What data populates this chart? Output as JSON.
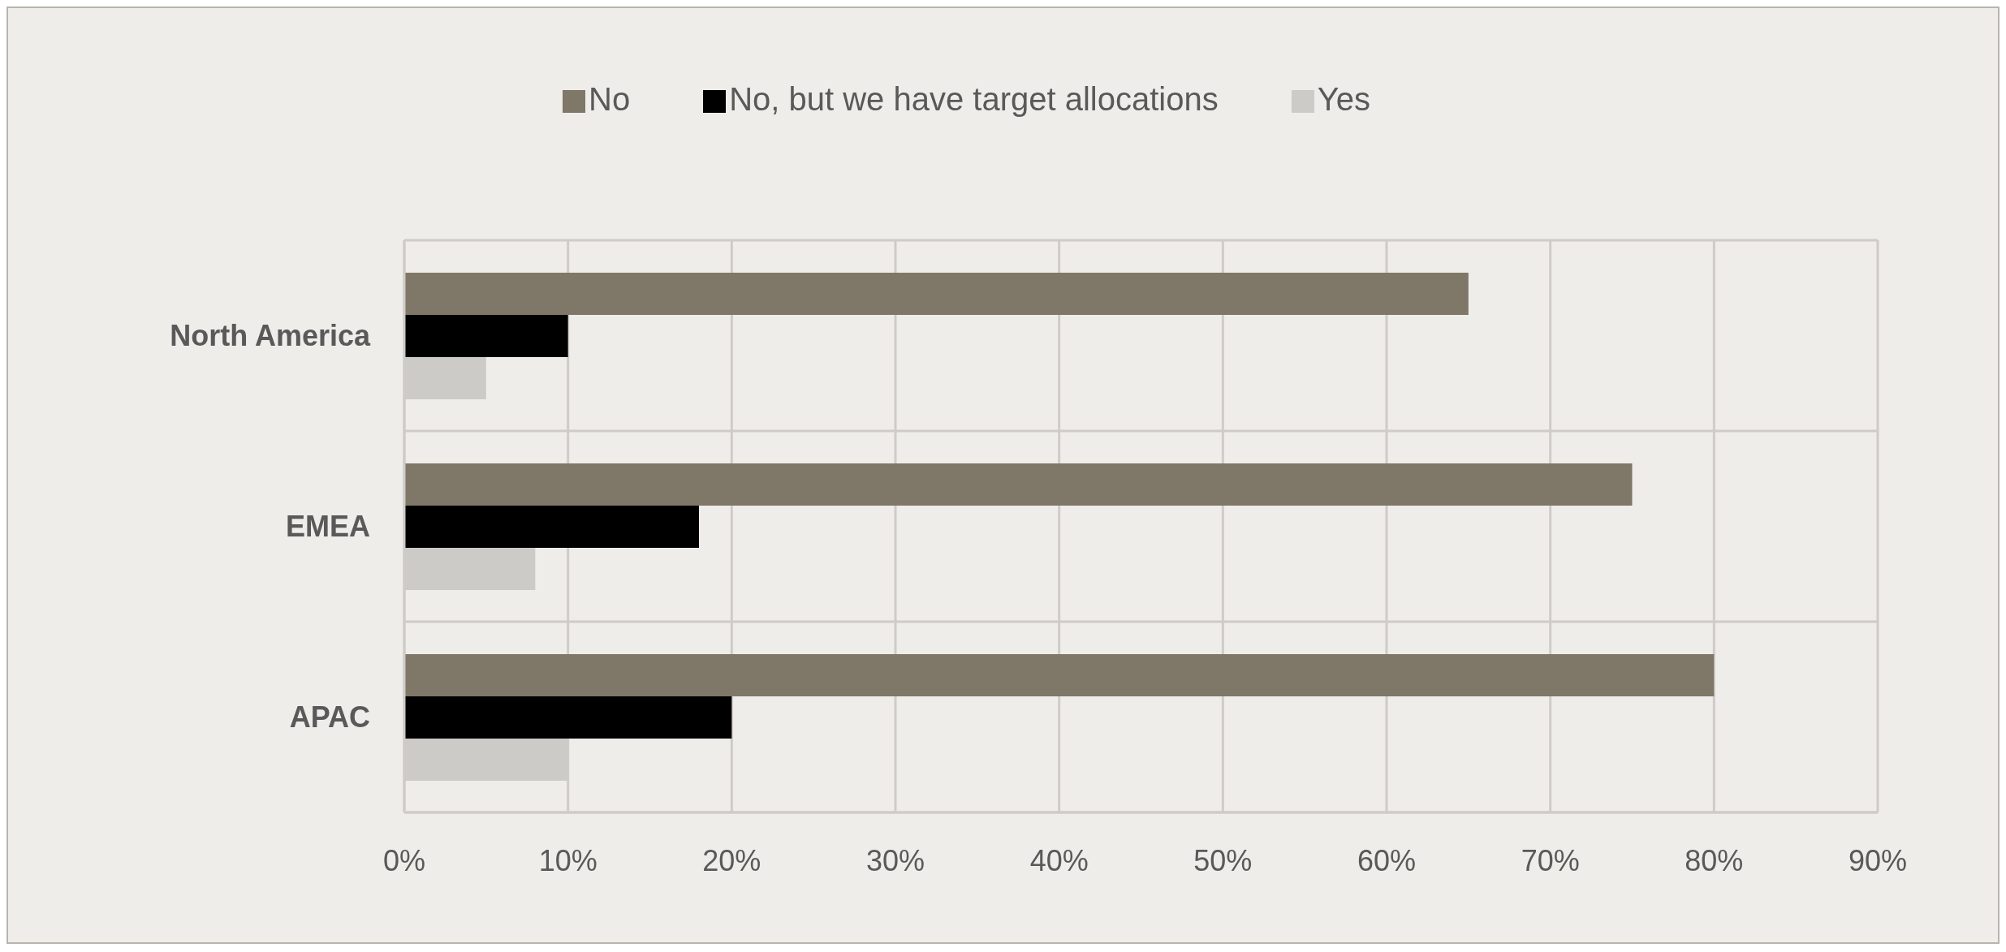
{
  "chart_data": {
    "type": "bar",
    "orientation": "horizontal",
    "categories": [
      "North America",
      "EMEA",
      "APAC"
    ],
    "series": [
      {
        "name": "No",
        "color": "#7f7767",
        "values": [
          65,
          75,
          80
        ]
      },
      {
        "name": "No, but we have target allocations",
        "color": "#000000",
        "values": [
          10,
          18,
          20
        ]
      },
      {
        "name": "Yes",
        "color": "#cdcbc7",
        "values": [
          5,
          8,
          10
        ]
      }
    ],
    "xlim": [
      0,
      90
    ],
    "xticks": [
      {
        "value": 0,
        "label": "0%"
      },
      {
        "value": 10,
        "label": "10%"
      },
      {
        "value": 20,
        "label": "20%"
      },
      {
        "value": 30,
        "label": "30%"
      },
      {
        "value": 40,
        "label": "40%"
      },
      {
        "value": 50,
        "label": "50%"
      },
      {
        "value": 60,
        "label": "60%"
      },
      {
        "value": 70,
        "label": "70%"
      },
      {
        "value": 80,
        "label": "80%"
      },
      {
        "value": 90,
        "label": "90%"
      }
    ],
    "grid": true,
    "legend": "top"
  }
}
